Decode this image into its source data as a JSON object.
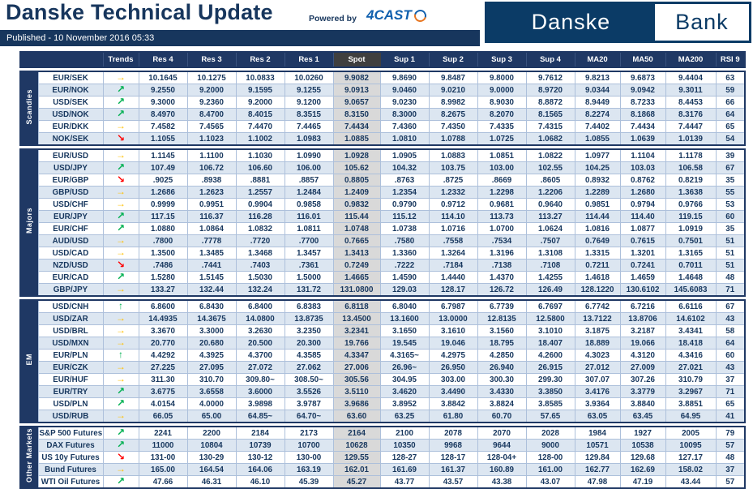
{
  "header": {
    "title": "Danske Technical Update",
    "published": "Published - 10 November 2016 05:33",
    "powered_by": "Powered by",
    "fourcast": "4CAST",
    "logo": {
      "danske": "Danske",
      "bank": "Bank"
    }
  },
  "colors": {
    "navy": "#1F3864",
    "brand_navy": "#0B3B66",
    "spot_header_bg": "#3F3F3F",
    "spot_cell_bg": "#D9D9D9",
    "alt_row_bg": "#DCE6F1",
    "trend_flat": "#FFC000",
    "trend_up": "#00B050",
    "trend_down": "#FF0000"
  },
  "trends": {
    "flat": {
      "glyph": "→",
      "color": "#FFC000"
    },
    "up": {
      "glyph": "↗",
      "color": "#00B050"
    },
    "down": {
      "glyph": "↘",
      "color": "#FF0000"
    },
    "strong_up": {
      "glyph": "↑",
      "color": "#00B050"
    }
  },
  "table": {
    "columns": [
      "Trends",
      "Res 4",
      "Res 3",
      "Res 2",
      "Res 1",
      "Spot",
      "Sup 1",
      "Sup 2",
      "Sup 3",
      "Sup 4",
      "MA20",
      "MA50",
      "MA200",
      "RSI 9"
    ],
    "groups": [
      {
        "label": "Scandies",
        "rows": [
          {
            "pair": "EUR/SEK",
            "trend": "flat",
            "values": [
              "10.1645",
              "10.1275",
              "10.0833",
              "10.0260",
              "9.9082",
              "9.8690",
              "9.8487",
              "9.8000",
              "9.7612",
              "9.8213",
              "9.6873",
              "9.4404",
              "63"
            ]
          },
          {
            "pair": "EUR/NOK",
            "trend": "up",
            "values": [
              "9.2550",
              "9.2000",
              "9.1595",
              "9.1255",
              "9.0913",
              "9.0460",
              "9.0210",
              "9.0000",
              "8.9720",
              "9.0344",
              "9.0942",
              "9.3011",
              "59"
            ]
          },
          {
            "pair": "USD/SEK",
            "trend": "up",
            "values": [
              "9.3000",
              "9.2360",
              "9.2000",
              "9.1200",
              "9.0657",
              "9.0230",
              "8.9982",
              "8.9030",
              "8.8872",
              "8.9449",
              "8.7233",
              "8.4453",
              "66"
            ]
          },
          {
            "pair": "USD/NOK",
            "trend": "up",
            "values": [
              "8.4970",
              "8.4700",
              "8.4015",
              "8.3515",
              "8.3150",
              "8.3000",
              "8.2675",
              "8.2070",
              "8.1565",
              "8.2274",
              "8.1868",
              "8.3176",
              "64"
            ]
          },
          {
            "pair": "EUR/DKK",
            "trend": "flat",
            "values": [
              "7.4582",
              "7.4565",
              "7.4470",
              "7.4465",
              "7.4434",
              "7.4360",
              "7.4350",
              "7.4335",
              "7.4315",
              "7.4402",
              "7.4434",
              "7.4447",
              "65"
            ]
          },
          {
            "pair": "NOK/SEK",
            "trend": "down",
            "values": [
              "1.1055",
              "1.1023",
              "1.1002",
              "1.0983",
              "1.0885",
              "1.0810",
              "1.0788",
              "1.0725",
              "1.0682",
              "1.0855",
              "1.0639",
              "1.0139",
              "54"
            ]
          }
        ]
      },
      {
        "label": "Majors",
        "rows": [
          {
            "pair": "EUR/USD",
            "trend": "flat",
            "values": [
              "1.1145",
              "1.1100",
              "1.1030",
              "1.0990",
              "1.0928",
              "1.0905",
              "1.0883",
              "1.0851",
              "1.0822",
              "1.0977",
              "1.1104",
              "1.1178",
              "39"
            ]
          },
          {
            "pair": "USD/JPY",
            "trend": "up",
            "values": [
              "107.49",
              "106.72",
              "106.60",
              "106.00",
              "105.62",
              "104.32",
              "103.75",
              "103.00",
              "102.55",
              "104.25",
              "103.03",
              "106.58",
              "67"
            ]
          },
          {
            "pair": "EUR/GBP",
            "trend": "down",
            "values": [
              ".9025",
              ".8938",
              ".8881",
              ".8857",
              "0.8805",
              ".8763",
              ".8725",
              ".8669",
              ".8605",
              "0.8932",
              "0.8762",
              "0.8219",
              "35"
            ]
          },
          {
            "pair": "GBP/USD",
            "trend": "flat",
            "values": [
              "1.2686",
              "1.2623",
              "1.2557",
              "1.2484",
              "1.2409",
              "1.2354",
              "1.2332",
              "1.2298",
              "1.2206",
              "1.2289",
              "1.2680",
              "1.3638",
              "55"
            ]
          },
          {
            "pair": "USD/CHF",
            "trend": "flat",
            "values": [
              "0.9999",
              "0.9951",
              "0.9904",
              "0.9858",
              "0.9832",
              "0.9790",
              "0.9712",
              "0.9681",
              "0.9640",
              "0.9851",
              "0.9794",
              "0.9766",
              "53"
            ]
          },
          {
            "pair": "EUR/JPY",
            "trend": "up",
            "values": [
              "117.15",
              "116.37",
              "116.28",
              "116.01",
              "115.44",
              "115.12",
              "114.10",
              "113.73",
              "113.27",
              "114.44",
              "114.40",
              "119.15",
              "60"
            ]
          },
          {
            "pair": "EUR/CHF",
            "trend": "up",
            "values": [
              "1.0880",
              "1.0864",
              "1.0832",
              "1.0811",
              "1.0748",
              "1.0738",
              "1.0716",
              "1.0700",
              "1.0624",
              "1.0816",
              "1.0877",
              "1.0919",
              "35"
            ]
          },
          {
            "pair": "AUD/USD",
            "trend": "flat",
            "values": [
              ".7800",
              ".7778",
              ".7720",
              ".7700",
              "0.7665",
              ".7580",
              ".7558",
              ".7534",
              ".7507",
              "0.7649",
              "0.7615",
              "0.7501",
              "51"
            ]
          },
          {
            "pair": "USD/CAD",
            "trend": "flat",
            "values": [
              "1.3500",
              "1.3485",
              "1.3468",
              "1.3457",
              "1.3413",
              "1.3360",
              "1.3264",
              "1.3196",
              "1.3108",
              "1.3315",
              "1.3201",
              "1.3165",
              "51"
            ]
          },
          {
            "pair": "NZD/USD",
            "trend": "down",
            "values": [
              ".7486",
              ".7441",
              ".7403",
              ".7361",
              "0.7249",
              ".7222",
              ".7184",
              ".7138",
              ".7108",
              "0.7211",
              "0.7241",
              "0.7011",
              "51"
            ]
          },
          {
            "pair": "EUR/CAD",
            "trend": "up",
            "values": [
              "1.5280",
              "1.5145",
              "1.5030",
              "1.5000",
              "1.4665",
              "1.4590",
              "1.4440",
              "1.4370",
              "1.4255",
              "1.4618",
              "1.4659",
              "1.4648",
              "48"
            ]
          },
          {
            "pair": "GBP/JPY",
            "trend": "flat",
            "values": [
              "133.27",
              "132.44",
              "132.24",
              "131.72",
              "131.0800",
              "129.03",
              "128.17",
              "126.72",
              "126.49",
              "128.1220",
              "130.6102",
              "145.6083",
              "71"
            ]
          }
        ]
      },
      {
        "label": "EM",
        "rows": [
          {
            "pair": "USD/CNH",
            "trend": "strong_up",
            "values": [
              "6.8600",
              "6.8430",
              "6.8400",
              "6.8383",
              "6.8118",
              "6.8040",
              "6.7987",
              "6.7739",
              "6.7697",
              "6.7742",
              "6.7216",
              "6.6116",
              "67"
            ]
          },
          {
            "pair": "USD/ZAR",
            "trend": "flat",
            "values": [
              "14.4935",
              "14.3675",
              "14.0800",
              "13.8735",
              "13.4500",
              "13.1600",
              "13.0000",
              "12.8135",
              "12.5800",
              "13.7122",
              "13.8706",
              "14.6102",
              "43"
            ]
          },
          {
            "pair": "USD/BRL",
            "trend": "flat",
            "values": [
              "3.3670",
              "3.3000",
              "3.2630",
              "3.2350",
              "3.2341",
              "3.1650",
              "3.1610",
              "3.1560",
              "3.1010",
              "3.1875",
              "3.2187",
              "3.4341",
              "58"
            ]
          },
          {
            "pair": "USD/MXN",
            "trend": "flat",
            "values": [
              "20.770",
              "20.680",
              "20.500",
              "20.300",
              "19.766",
              "19.545",
              "19.046",
              "18.795",
              "18.407",
              "18.889",
              "19.066",
              "18.418",
              "64"
            ]
          },
          {
            "pair": "EUR/PLN",
            "trend": "strong_up",
            "values": [
              "4.4292",
              "4.3925",
              "4.3700",
              "4.3585",
              "4.3347",
              "4.3165~",
              "4.2975",
              "4.2850",
              "4.2600",
              "4.3023",
              "4.3120",
              "4.3416",
              "60"
            ]
          },
          {
            "pair": "EUR/CZK",
            "trend": "flat",
            "values": [
              "27.225",
              "27.095",
              "27.072",
              "27.062",
              "27.006",
              "26.96~",
              "26.950",
              "26.940",
              "26.915",
              "27.012",
              "27.009",
              "27.021",
              "43"
            ]
          },
          {
            "pair": "EUR/HUF",
            "trend": "flat",
            "values": [
              "311.30",
              "310.70",
              "309.80~",
              "308.50~",
              "305.56",
              "304.95",
              "303.00",
              "300.30",
              "299.30",
              "307.07",
              "307.26",
              "310.79",
              "37"
            ]
          },
          {
            "pair": "EUR/TRY",
            "trend": "up",
            "values": [
              "3.6775",
              "3.6558",
              "3.6000",
              "3.5526",
              "3.5110",
              "3.4620",
              "3.4490",
              "3.4330",
              "3.3850",
              "3.4176",
              "3.3779",
              "3.2967",
              "71"
            ]
          },
          {
            "pair": "USD/PLN",
            "trend": "up",
            "values": [
              "4.0154",
              "4.0000",
              "3.9898",
              "3.9787",
              "3.9686",
              "3.8952",
              "3.8842",
              "3.8824",
              "3.8585",
              "3.9364",
              "3.8840",
              "3.8851",
              "65"
            ]
          },
          {
            "pair": "USD/RUB",
            "trend": "flat",
            "values": [
              "66.05",
              "65.00",
              "64.85~",
              "64.70~",
              "63.60",
              "63.25",
              "61.80",
              "60.70",
              "57.65",
              "63.05",
              "63.45",
              "64.95",
              "41"
            ]
          }
        ]
      },
      {
        "label": "Other Markets",
        "rows": [
          {
            "pair": "S&P 500 Futures",
            "trend": "up",
            "values": [
              "2241",
              "2200",
              "2184",
              "2173",
              "2164",
              "2100",
              "2078",
              "2070",
              "2028",
              "1984",
              "1927",
              "2005",
              "79"
            ]
          },
          {
            "pair": "DAX Futures",
            "trend": "up",
            "values": [
              "11000",
              "10804",
              "10739",
              "10700",
              "10628",
              "10350",
              "9968",
              "9644",
              "9000",
              "10571",
              "10538",
              "10095",
              "57"
            ]
          },
          {
            "pair": "US 10y Futures",
            "trend": "down",
            "values": [
              "131-00",
              "130-29",
              "130-12",
              "130-00",
              "129.55",
              "128-27",
              "128-17",
              "128-04+",
              "128-00",
              "129.84",
              "129.68",
              "127.17",
              "48"
            ]
          },
          {
            "pair": "Bund Futures",
            "trend": "flat",
            "values": [
              "165.00",
              "164.54",
              "164.06",
              "163.19",
              "162.01",
              "161.69",
              "161.37",
              "160.89",
              "161.00",
              "162.77",
              "162.69",
              "158.02",
              "37"
            ]
          },
          {
            "pair": "WTI Oil Futures",
            "trend": "up",
            "values": [
              "47.66",
              "46.31",
              "46.10",
              "45.39",
              "45.27",
              "43.77",
              "43.57",
              "43.38",
              "43.07",
              "47.98",
              "47.19",
              "43.44",
              "57"
            ]
          }
        ]
      }
    ]
  }
}
